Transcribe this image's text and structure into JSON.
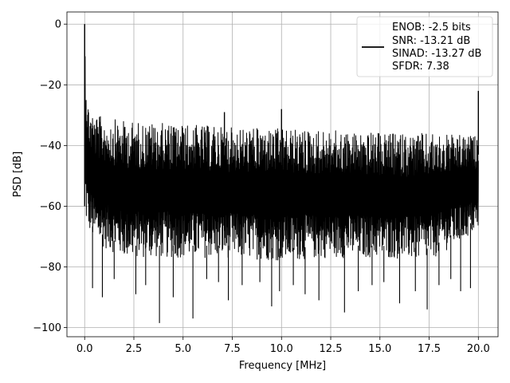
{
  "chart_data": {
    "type": "line",
    "xlabel": "Frequency [MHz]",
    "ylabel": "PSD [dB]",
    "xlim": [
      -0.9,
      21.0
    ],
    "ylim": [
      -103,
      4
    ],
    "xticks": [
      0.0,
      2.5,
      5.0,
      7.5,
      10.0,
      12.5,
      15.0,
      17.5,
      20.0
    ],
    "xtick_labels": [
      "0.0",
      "2.5",
      "5.0",
      "7.5",
      "10.0",
      "12.5",
      "15.0",
      "17.5",
      "20.0"
    ],
    "yticks": [
      0,
      -20,
      -40,
      -60,
      -80,
      -100
    ],
    "ytick_labels": [
      "0",
      "−20",
      "−40",
      "−60",
      "−80",
      "−100"
    ],
    "grid": true,
    "legend_position": "top-right",
    "line_color": "#000000",
    "series": [
      {
        "legend_lines": [
          "ENOB: -2.5 bits",
          "SNR: -13.21 dB",
          "SINAD: -13.27 dB",
          "SFDR: 7.38"
        ],
        "envelope_upper": [
          [
            0.0,
            0.0
          ],
          [
            0.15,
            -25
          ],
          [
            0.5,
            -30
          ],
          [
            2.0,
            -32
          ],
          [
            5.0,
            -33
          ],
          [
            7.5,
            -34
          ],
          [
            10.0,
            -34.5
          ],
          [
            12.5,
            -35
          ],
          [
            15.0,
            -36
          ],
          [
            17.5,
            -36
          ],
          [
            20.0,
            -37
          ]
        ],
        "envelope_lower": [
          [
            0.0,
            -65
          ],
          [
            0.5,
            -72
          ],
          [
            2.0,
            -77
          ],
          [
            5.0,
            -77
          ],
          [
            7.5,
            -77
          ],
          [
            10.0,
            -78
          ],
          [
            12.5,
            -77
          ],
          [
            15.0,
            -77
          ],
          [
            17.5,
            -78
          ],
          [
            20.0,
            -68
          ]
        ],
        "spurs": [
          [
            7.1,
            -29
          ],
          [
            10.0,
            -28
          ],
          [
            20.0,
            -22
          ]
        ],
        "dips": [
          [
            0.4,
            -87
          ],
          [
            0.9,
            -90
          ],
          [
            1.5,
            -84
          ],
          [
            2.6,
            -89
          ],
          [
            3.1,
            -86
          ],
          [
            3.8,
            -98.5
          ],
          [
            4.5,
            -90
          ],
          [
            5.5,
            -97
          ],
          [
            6.2,
            -84
          ],
          [
            6.8,
            -85
          ],
          [
            7.3,
            -91
          ],
          [
            8.0,
            -86
          ],
          [
            8.9,
            -85
          ],
          [
            9.5,
            -93
          ],
          [
            9.9,
            -88
          ],
          [
            10.6,
            -86
          ],
          [
            11.2,
            -89
          ],
          [
            11.9,
            -91
          ],
          [
            13.2,
            -95
          ],
          [
            13.9,
            -88
          ],
          [
            14.6,
            -86
          ],
          [
            15.2,
            -85
          ],
          [
            16.0,
            -92
          ],
          [
            16.8,
            -88
          ],
          [
            17.4,
            -94
          ],
          [
            18.0,
            -86
          ],
          [
            18.6,
            -84
          ],
          [
            19.1,
            -88
          ],
          [
            19.6,
            -87
          ]
        ]
      }
    ]
  }
}
